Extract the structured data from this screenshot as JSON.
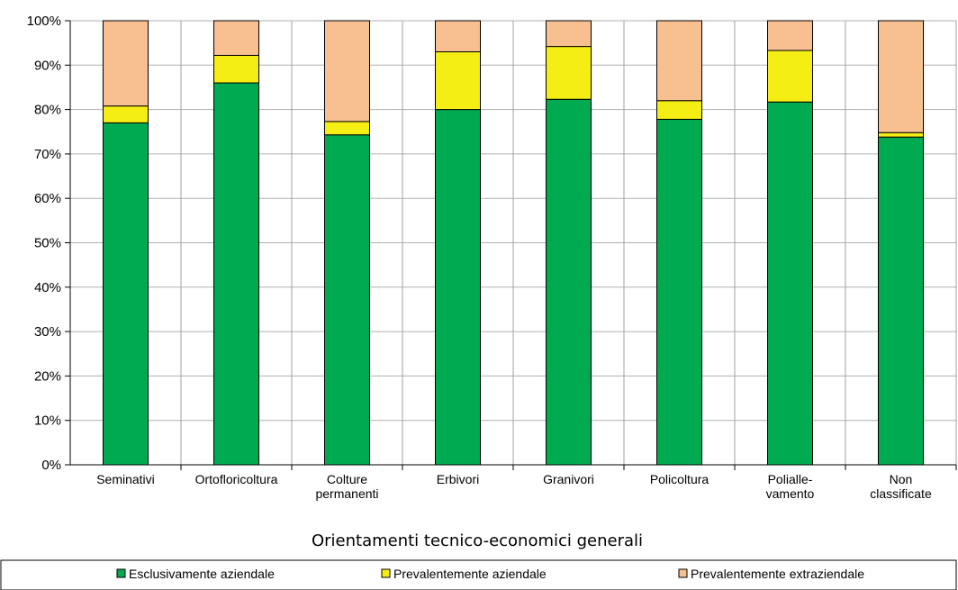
{
  "chart_data": {
    "type": "bar",
    "stacked": true,
    "percent": true,
    "xlabel": "Orientamenti tecnico-economici generali",
    "ylim": [
      0,
      100
    ],
    "yticks": [
      "0%",
      "10%",
      "20%",
      "30%",
      "40%",
      "50%",
      "60%",
      "70%",
      "80%",
      "90%",
      "100%"
    ],
    "categories": [
      [
        "Seminativi"
      ],
      [
        "Ortofloricoltura"
      ],
      [
        "Colture",
        "permanenti"
      ],
      [
        "Erbivori"
      ],
      [
        "Granivori"
      ],
      [
        "Policoltura"
      ],
      [
        "Polialle-",
        "vamento"
      ],
      [
        "Non",
        "classificate"
      ]
    ],
    "series": [
      {
        "name": "Esclusivamente aziendale",
        "color": "#00aa50",
        "values": [
          77,
          86,
          74.3,
          80,
          82.3,
          77.8,
          81.7,
          73.8
        ]
      },
      {
        "name": "Prevalentemente aziendale",
        "color": "#f5ee14",
        "values": [
          3.8,
          6.2,
          3.0,
          13.0,
          11.9,
          4.2,
          11.6,
          1.0
        ]
      },
      {
        "name": "Prevalentemente extraziendale",
        "color": "#f8c090",
        "values": [
          19.2,
          7.8,
          22.7,
          7.0,
          5.8,
          18.0,
          6.7,
          25.2
        ]
      }
    ],
    "gridlines": true,
    "legend_position": "bottom"
  }
}
